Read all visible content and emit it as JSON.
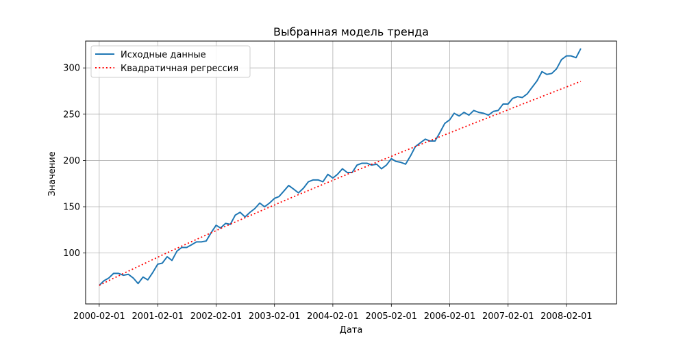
{
  "chart_data": {
    "type": "line",
    "title": "Выбранная модель тренда",
    "xlabel": "Дата",
    "ylabel": "Значение",
    "grid": true,
    "legend_position": "top-left",
    "x_start": "2000-02-01",
    "x_range": [
      "1999-11-08",
      "2008-12-10"
    ],
    "ylim": [
      45,
      329
    ],
    "x_ticks": [
      "2000-02-01",
      "2001-02-01",
      "2002-02-01",
      "2003-02-01",
      "2004-02-01",
      "2005-02-01",
      "2006-02-01",
      "2007-02-01",
      "2008-02-01"
    ],
    "y_ticks": [
      100,
      150,
      200,
      250,
      300
    ],
    "series": [
      {
        "name": "Исходные данные",
        "color": "#1f77b4",
        "style": "solid",
        "values": [
          65,
          70,
          73,
          78,
          78,
          76,
          77,
          73,
          67,
          74,
          71,
          79,
          88,
          89,
          96,
          92,
          102,
          106,
          106,
          109,
          112,
          112,
          113,
          122,
          130,
          127,
          132,
          131,
          141,
          144,
          139,
          144,
          148,
          154,
          150,
          154,
          159,
          161,
          167,
          173,
          169,
          165,
          170,
          177,
          179,
          179,
          177,
          185,
          181,
          185,
          191,
          187,
          187,
          195,
          197,
          197,
          195,
          196,
          191,
          195,
          202,
          199,
          198,
          196,
          205,
          215,
          219,
          223,
          221,
          221,
          230,
          240,
          244,
          251,
          248,
          252,
          249,
          254,
          252,
          251,
          249,
          253,
          254,
          261,
          261,
          267,
          269,
          268,
          272,
          279,
          286,
          296,
          293,
          294,
          299,
          309,
          313,
          313,
          311,
          321
        ]
      },
      {
        "name": "Квадратичная регрессия",
        "color": "#ff0000",
        "style": "dotted",
        "values": [
          65,
          67.6,
          70.2,
          72.8,
          75.3,
          77.9,
          80.4,
          82.9,
          85.4,
          87.9,
          90.4,
          92.9,
          95.4,
          97.8,
          100.3,
          102.7,
          105.1,
          107.5,
          109.9,
          112.3,
          114.7,
          117.1,
          119.5,
          121.8,
          124.2,
          126.5,
          128.9,
          131.2,
          133.5,
          135.8,
          138.1,
          140.4,
          142.7,
          145,
          147.3,
          149.6,
          151.8,
          154.1,
          156.3,
          158.6,
          160.8,
          163.1,
          165.3,
          167.5,
          169.7,
          171.9,
          174.1,
          176.3,
          178.5,
          180.7,
          182.9,
          185.1,
          187.2,
          189.4,
          191.6,
          193.7,
          195.9,
          198,
          200.2,
          202.3,
          204.4,
          206.6,
          208.7,
          210.8,
          212.9,
          215,
          217.2,
          219.3,
          221.4,
          223.5,
          225.6,
          227.7,
          229.8,
          231.8,
          233.9,
          236,
          238.1,
          240.2,
          242.3,
          244.3,
          246.4,
          248.5,
          250.5,
          252.6,
          254.7,
          256.7,
          258.8,
          260.9,
          262.9,
          265,
          267,
          269.1,
          271.2,
          273.2,
          275.3,
          277.3,
          279.4,
          281.4,
          283.5,
          285.5
        ]
      }
    ]
  }
}
